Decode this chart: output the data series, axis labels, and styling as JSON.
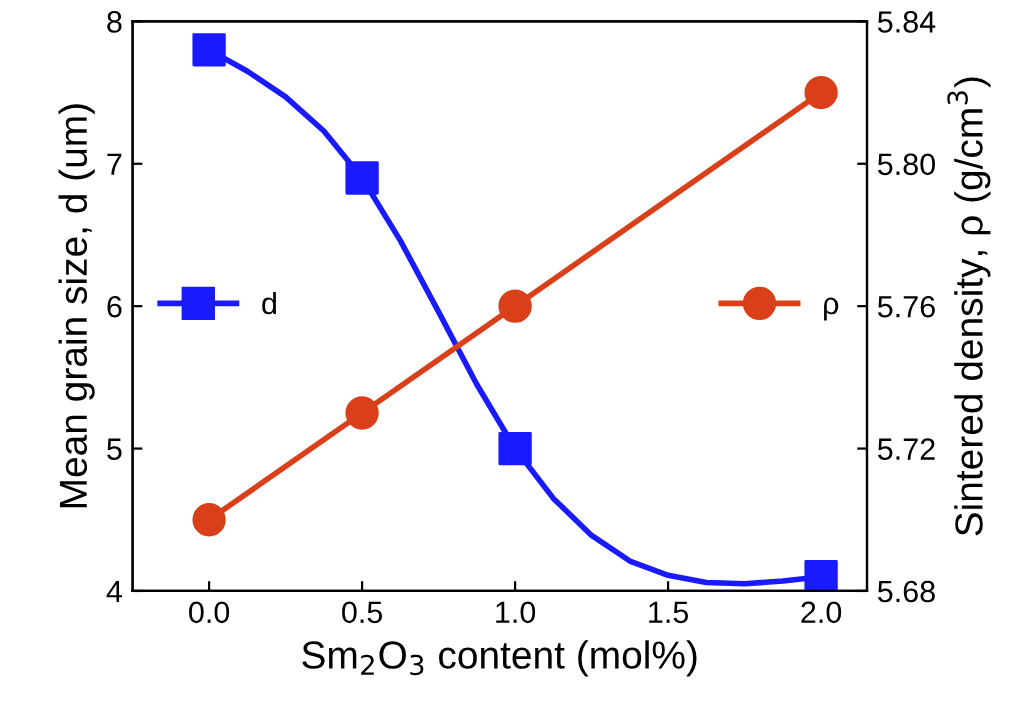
{
  "chart_data": {
    "type": "line",
    "xlabel": "Sm$_{2}$O$_{3}$ content (mol%)",
    "ylabel": "Mean grain size, d (um)",
    "y2label": "Sintered density, ρ (g/cm$^{3}$)",
    "x": [
      0.0,
      0.5,
      1.0,
      2.0
    ],
    "series": [
      {
        "name": "d",
        "type": "scatter",
        "color": "#1a1aff",
        "values": [
          7.8,
          6.9,
          5.0,
          4.1
        ],
        "marker": "square"
      },
      {
        "type": "line",
        "color": "#1a1aff",
        "x": [
          0,
          0.125,
          0.25,
          0.375,
          0.5,
          0.625,
          0.75,
          0.875,
          1.0,
          1.125,
          1.25,
          1.375,
          1.5,
          1.625,
          1.75,
          1.875,
          2.0
        ],
        "values": [
          7.8,
          7.65,
          7.47,
          7.23,
          6.9,
          6.46,
          5.96,
          5.45,
          5.0,
          4.65,
          4.39,
          4.21,
          4.11,
          4.06,
          4.05,
          4.07,
          4.1
        ],
        "marker": "none"
      },
      {
        "name": "ρ",
        "color": "#d9401a",
        "values": [
          5.7,
          5.73,
          5.76,
          5.82
        ],
        "marker": "circle",
        "axis": "y2"
      }
    ],
    "xlim": [
      -0.25,
      2.15
    ],
    "xticks": [
      {
        "value": 0,
        "label": "0.0"
      },
      {
        "value": 0.5,
        "label": "0.5"
      },
      {
        "value": 1,
        "label": "1.0"
      },
      {
        "value": 1.5,
        "label": "1.5"
      },
      {
        "value": 2,
        "label": "2.0"
      }
    ],
    "ylim": [
      4,
      8
    ],
    "yticks": [
      4,
      5,
      6,
      7,
      8
    ],
    "y2lim": [
      5.68,
      5.84
    ],
    "y2ticks": [
      5.68,
      5.72,
      5.76,
      {
        "value": 5.8,
        "label": "5.80"
      },
      5.84
    ],
    "legend": "center",
    "grid": false,
    "line_style": "solid"
  }
}
